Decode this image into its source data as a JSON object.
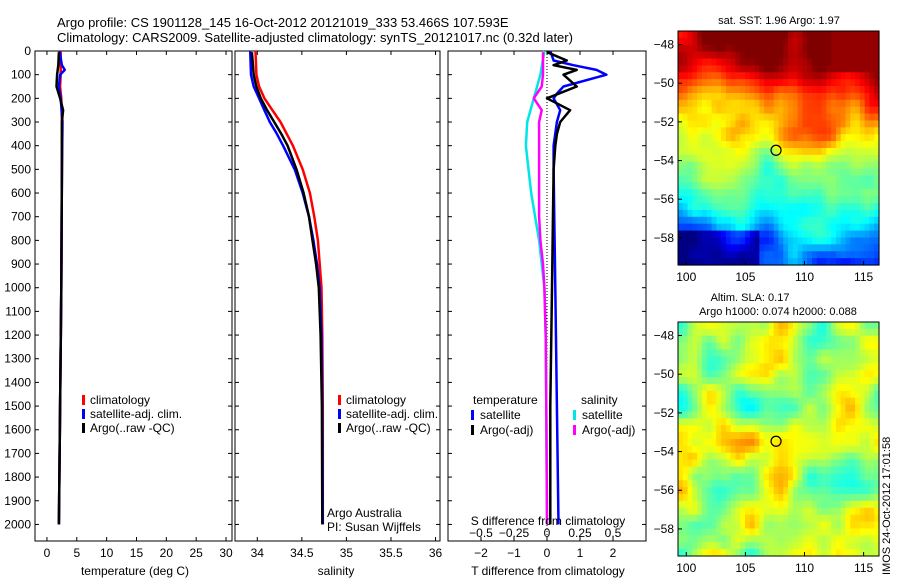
{
  "title_line1": "Argo profile: CS 1901128_145 16-Oct-2012 20121019_333 53.466S 107.593E",
  "title_line2": "Climatology: CARS2009. Satellite-adjusted climatology: synTS_20121017.nc (0.32d later)",
  "colors": {
    "climatology": "#ff0000",
    "satellite": "#0000ff",
    "argo": "#000000",
    "sal_satellite": "#00e5e5",
    "sal_argo": "#ff00ff"
  },
  "chart_data": [
    {
      "type": "line",
      "id": "temperature",
      "xlabel": "temperature (deg C)",
      "xlim": [
        -2,
        31
      ],
      "xticks": [
        0,
        5,
        10,
        15,
        20,
        25,
        30
      ],
      "ylim": [
        0,
        2070
      ],
      "yticks": [
        0,
        100,
        200,
        300,
        400,
        500,
        600,
        700,
        800,
        900,
        1000,
        1100,
        1200,
        1300,
        1400,
        1500,
        1600,
        1700,
        1800,
        1900,
        2000
      ],
      "legend": [
        "climatology",
        "satellite-adj. clim.",
        "Argo(..raw -QC)"
      ],
      "series": [
        {
          "name": "climatology",
          "color": "red",
          "depth": [
            0,
            100,
            150,
            200,
            300,
            500,
            1000,
            1500,
            2000
          ],
          "values": [
            2.3,
            2.3,
            2.2,
            2.4,
            2.5,
            2.5,
            2.4,
            2.2,
            2.0
          ]
        },
        {
          "name": "satellite-adj. clim.",
          "color": "blue",
          "depth": [
            0,
            60,
            80,
            100,
            150,
            200,
            300,
            500,
            1000,
            1500,
            2000
          ],
          "values": [
            2.1,
            2.5,
            3.0,
            2.2,
            2.0,
            2.3,
            2.6,
            2.5,
            2.4,
            2.2,
            2.0
          ]
        },
        {
          "name": "Argo(..raw -QC)",
          "color": "black",
          "depth": [
            5,
            60,
            100,
            150,
            200,
            250,
            300,
            500,
            1000,
            1500,
            2000
          ],
          "values": [
            2.0,
            1.9,
            1.7,
            1.6,
            2.2,
            2.7,
            2.5,
            2.5,
            2.4,
            2.2,
            2.0
          ]
        }
      ]
    },
    {
      "type": "line",
      "id": "salinity",
      "xlabel": "salinity",
      "xlim": [
        33.75,
        36.05
      ],
      "xticks": [
        34,
        34.5,
        35,
        35.5,
        36
      ],
      "xticklabels": [
        "34",
        "34.5",
        "35",
        "35.5",
        "36"
      ],
      "ylim": [
        0,
        2070
      ],
      "legend": [
        "climatology",
        "satellite-adj. clim.",
        "Argo(..raw -QC)"
      ],
      "note_lines": [
        "Argo Australia",
        "PI: Susan Wijffels"
      ],
      "series": [
        {
          "name": "climatology",
          "color": "red",
          "depth": [
            0,
            100,
            150,
            200,
            250,
            300,
            400,
            500,
            600,
            700,
            800,
            900,
            1000,
            1200,
            1500,
            2000
          ],
          "values": [
            33.98,
            33.99,
            34.02,
            34.08,
            34.17,
            34.26,
            34.4,
            34.51,
            34.59,
            34.64,
            34.68,
            34.7,
            34.72,
            34.73,
            34.735,
            34.735
          ]
        },
        {
          "name": "satellite-adj. clim.",
          "color": "blue",
          "depth": [
            0,
            100,
            150,
            200,
            250,
            300,
            350,
            400,
            500,
            600,
            700,
            800,
            900,
            1000,
            1200,
            1500,
            2000
          ],
          "values": [
            33.92,
            33.93,
            33.96,
            34.02,
            34.08,
            34.14,
            34.22,
            34.29,
            34.42,
            34.51,
            34.58,
            34.63,
            34.67,
            34.7,
            34.72,
            34.73,
            34.735
          ]
        },
        {
          "name": "Argo(..raw -QC)",
          "color": "black",
          "depth": [
            5,
            100,
            150,
            200,
            250,
            300,
            350,
            400,
            500,
            600,
            700,
            800,
            900,
            1000,
            1200,
            1500,
            2000
          ],
          "values": [
            33.94,
            33.96,
            33.99,
            34.04,
            34.11,
            34.19,
            34.27,
            34.34,
            34.44,
            34.52,
            34.58,
            34.62,
            34.66,
            34.69,
            34.71,
            34.725,
            34.73
          ]
        }
      ]
    },
    {
      "type": "line",
      "id": "differences",
      "xlabel": "T difference from climatology",
      "xlim": [
        -3,
        3
      ],
      "xticks": [
        -2,
        -1,
        0,
        1,
        2
      ],
      "xticklabels": [
        "−2",
        "−1",
        "0",
        "1",
        "2"
      ],
      "top_axis_label": "S difference from climatology",
      "top_ticks": [
        -0.5,
        -0.25,
        0,
        0.25,
        0.5
      ],
      "top_ticklabels": [
        "−0.5",
        "−0.25",
        "0",
        "0.25",
        "0.5"
      ],
      "ylim": [
        0,
        2070
      ],
      "legend_groups": [
        {
          "title": "temperature",
          "items": [
            "satellite",
            "Argo(-adj)"
          ]
        },
        {
          "title": "salinity",
          "items": [
            "satellite",
            "Argo(-adj)"
          ]
        }
      ],
      "series": [
        {
          "name": "temperature satellite",
          "color": "blue",
          "depth": [
            0,
            40,
            60,
            80,
            100,
            150,
            180,
            200,
            250,
            300,
            400,
            500,
            1000,
            1500,
            2000
          ],
          "values": [
            0.1,
            0.2,
            0.8,
            1.5,
            1.8,
            0.5,
            0.3,
            0.2,
            0.4,
            0.3,
            0.2,
            0.2,
            0.25,
            0.3,
            0.35
          ]
        },
        {
          "name": "temperature Argo(-adj)",
          "color": "black",
          "depth": [
            5,
            40,
            60,
            80,
            100,
            150,
            200,
            250,
            300,
            350,
            400,
            500,
            1000,
            1500,
            2000
          ],
          "values": [
            0.0,
            0.6,
            0.2,
            0.9,
            0.5,
            0.9,
            0.0,
            0.7,
            0.4,
            0.3,
            0.25,
            0.2,
            0.15,
            0.1,
            0.1
          ]
        },
        {
          "name": "salinity satellite",
          "color": "cyan",
          "depth": [
            0,
            100,
            200,
            300,
            400,
            500,
            600,
            700,
            800,
            900,
            1000,
            1200,
            1500,
            2000
          ],
          "values": [
            -0.02,
            -0.05,
            -0.1,
            -0.15,
            -0.16,
            -0.14,
            -0.12,
            -0.09,
            -0.06,
            -0.04,
            -0.02,
            -0.01,
            -0.005,
            0.0
          ]
        },
        {
          "name": "salinity Argo(-adj)",
          "color": "magenta",
          "depth": [
            5,
            100,
            150,
            200,
            250,
            300,
            400,
            500,
            600,
            700,
            800,
            900,
            1000,
            1200,
            1500,
            2000
          ],
          "values": [
            -0.03,
            -0.03,
            -0.04,
            -0.1,
            -0.04,
            -0.06,
            -0.06,
            -0.06,
            -0.06,
            -0.06,
            -0.05,
            -0.03,
            -0.02,
            -0.01,
            -0.005,
            0.0
          ]
        }
      ]
    },
    {
      "type": "heatmap",
      "id": "sst_map",
      "title": "sat. SST: 1.96 Argo: 1.97",
      "xlim": [
        99.3,
        116.3
      ],
      "ylim": [
        -59.4,
        -47.3
      ],
      "xticks": [
        100,
        105,
        110,
        115
      ],
      "yticks": [
        -48,
        -50,
        -52,
        -54,
        -56,
        -58
      ],
      "marker": {
        "lon": 107.593,
        "lat": -53.466
      }
    },
    {
      "type": "heatmap",
      "id": "sla_map",
      "title_lines": [
        "Altim. SLA: 0.17",
        "Argo h1000: 0.074 h2000: 0.088"
      ],
      "xlim": [
        99.3,
        116.3
      ],
      "ylim": [
        -59.4,
        -47.3
      ],
      "xticks": [
        100,
        105,
        110,
        115
      ],
      "yticks": [
        -48,
        -50,
        -52,
        -54,
        -56,
        -58
      ],
      "marker": {
        "lon": 107.593,
        "lat": -53.466
      }
    }
  ],
  "footer_vertical": "IMOS 24-Oct-2012 17:01:58"
}
